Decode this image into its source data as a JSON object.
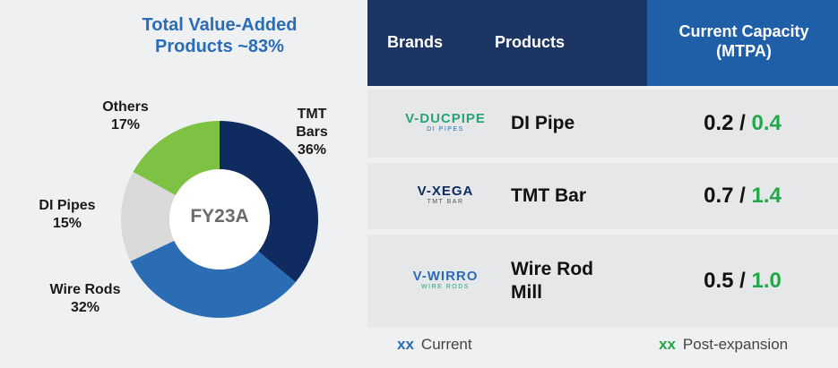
{
  "chart_data": {
    "type": "pie",
    "donut": true,
    "title": "Total Value-Added Products ~83%",
    "center_label": "FY23A",
    "categories": [
      "TMT Bars",
      "Wire Rods",
      "DI Pipes",
      "Others"
    ],
    "values": [
      36,
      32,
      15,
      17
    ],
    "value_labels": [
      "36%",
      "32%",
      "15%",
      "17%"
    ],
    "colors": [
      "#0f2b5f",
      "#2a6db5",
      "#d9d9d9",
      "#7dc242"
    ]
  },
  "table": {
    "headers": [
      "Brands",
      "Products",
      "Current Capacity (MTPA)"
    ],
    "separator": "/",
    "rows": [
      {
        "logo": {
          "name": "V-DUCPIPE",
          "tag": "DI PIPES"
        },
        "product": "DI Pipe",
        "current": "0.2",
        "post": "0.4"
      },
      {
        "logo": {
          "name": "V-XEGA",
          "tag": "TMT BAR"
        },
        "product": "TMT Bar",
        "current": "0.7",
        "post": "1.4"
      },
      {
        "logo": {
          "name": "V-WIRRO",
          "tag": "WIRE RODS"
        },
        "product": "Wire Rod Mill",
        "current": "0.5",
        "post": "1.0"
      }
    ],
    "legend": {
      "marker": "xx",
      "current": "Current",
      "post": "Post-expansion"
    }
  }
}
